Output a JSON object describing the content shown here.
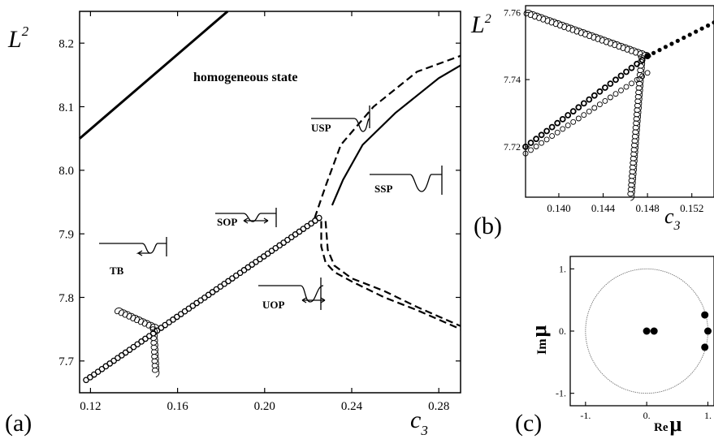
{
  "figure": {
    "panel_a_label": "(a)",
    "panel_b_label": "(b)",
    "panel_c_label": "(c)"
  },
  "chart_data": [
    {
      "panel": "(a)",
      "type": "line",
      "ylabel": "L",
      "ylabel_sup": "2",
      "xlabel": "c",
      "xlabel_sub": "3",
      "xlim": [
        0.115,
        0.29
      ],
      "ylim": [
        7.65,
        8.25
      ],
      "xticks": [
        "0.12",
        "0.16",
        "0.20",
        "0.24",
        "0.28"
      ],
      "yticks": [
        "7.7",
        "7.8",
        "7.9",
        "8.0",
        "8.1",
        "8.2"
      ],
      "annotations": [
        "homogeneous state",
        "USP",
        "SSP",
        "SOP",
        "TB",
        "UOP"
      ],
      "series": [
        {
          "style": "solid-thick",
          "x": [
            0.115,
            0.183
          ],
          "y": [
            8.05,
            8.25
          ]
        },
        {
          "style": "dashed",
          "x": [
            0.223,
            0.228,
            0.235,
            0.25,
            0.27,
            0.29
          ],
          "y": [
            7.925,
            7.975,
            8.04,
            8.1,
            8.155,
            8.18
          ]
        },
        {
          "style": "solid",
          "x": [
            0.231,
            0.236,
            0.245,
            0.26,
            0.28,
            0.29
          ],
          "y": [
            7.945,
            7.985,
            8.04,
            8.09,
            8.145,
            8.165
          ]
        },
        {
          "style": "dashed",
          "x": [
            0.226,
            0.226,
            0.228,
            0.232,
            0.24,
            0.255,
            0.27,
            0.29
          ],
          "y": [
            7.92,
            7.88,
            7.855,
            7.84,
            7.825,
            7.8,
            7.78,
            7.75
          ]
        },
        {
          "style": "dashed",
          "x": [
            0.228,
            0.229,
            0.232,
            0.24,
            0.255,
            0.27,
            0.29
          ],
          "y": [
            7.92,
            7.875,
            7.85,
            7.83,
            7.81,
            7.785,
            7.755
          ]
        },
        {
          "style": "circles",
          "x": [
            0.118,
            0.225
          ],
          "y": [
            7.67,
            7.925
          ],
          "count": 60
        },
        {
          "style": "curl",
          "x": [
            0.132,
            0.15
          ],
          "y": [
            7.78,
            7.752
          ]
        },
        {
          "style": "curl",
          "x": [
            0.149,
            0.15
          ],
          "y": [
            7.752,
            7.68
          ]
        }
      ]
    },
    {
      "panel": "(b)",
      "type": "line",
      "ylabel": "L",
      "ylabel_sup": "2",
      "xlabel": "c",
      "xlabel_sub": "3",
      "xlim": [
        0.137,
        0.154
      ],
      "ylim": [
        7.705,
        7.762
      ],
      "xticks": [
        "0.140",
        "0.144",
        "0.148",
        "0.152"
      ],
      "yticks": [
        "7.72",
        "7.74",
        "7.76"
      ],
      "series": [
        {
          "style": "curl",
          "x": [
            0.137,
            0.148
          ],
          "y": [
            7.76,
            7.747
          ]
        },
        {
          "style": "curl",
          "x": [
            0.1475,
            0.1465
          ],
          "y": [
            7.747,
            7.705
          ]
        },
        {
          "style": "circles-bold",
          "x": [
            0.137,
            0.148
          ],
          "y": [
            7.72,
            7.747
          ]
        },
        {
          "style": "circles-light",
          "x": [
            0.137,
            0.148
          ],
          "y": [
            7.718,
            7.742
          ]
        },
        {
          "style": "dots",
          "x": [
            0.148,
            0.154
          ],
          "y": [
            7.747,
            7.757
          ]
        }
      ]
    },
    {
      "panel": "(c)",
      "type": "scatter",
      "xlabel": "Re",
      "xlabel_sym": "μ",
      "ylabel": "Im",
      "ylabel_sym": "μ",
      "xlim": [
        -1.25,
        1.1
      ],
      "ylim": [
        -1.2,
        1.2
      ],
      "xticks": [
        "-1.",
        "0.",
        "1."
      ],
      "yticks": [
        "1.",
        "0.",
        "-1."
      ],
      "unit_circle": true,
      "points": [
        {
          "x": 0.0,
          "y": 0.0
        },
        {
          "x": 0.12,
          "y": 0.0
        },
        {
          "x": 0.95,
          "y": 0.26
        },
        {
          "x": 1.0,
          "y": 0.0
        },
        {
          "x": 0.95,
          "y": -0.26
        }
      ]
    }
  ]
}
